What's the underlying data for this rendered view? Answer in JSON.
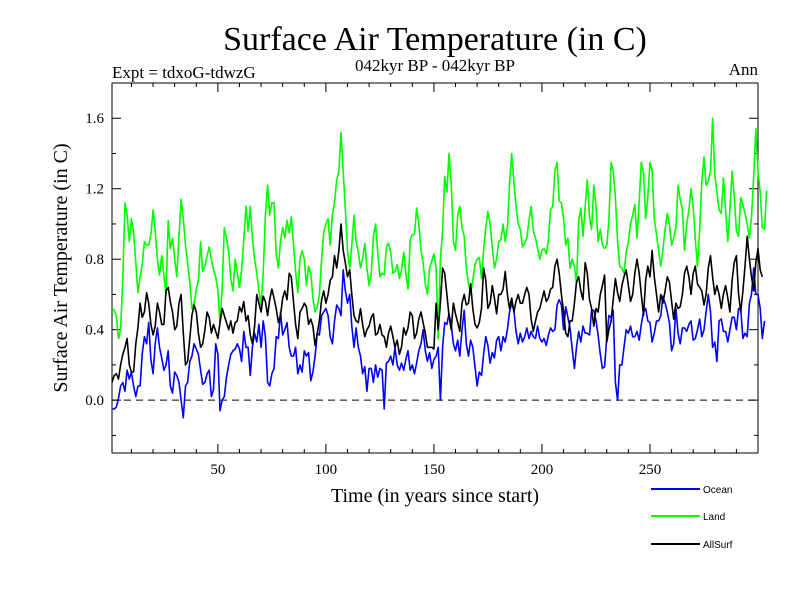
{
  "chart_data": {
    "type": "line",
    "title": "Surface Air Temperature (in C)",
    "subtitle_left": "Expt = tdxoG-tdwzG",
    "subtitle_center": "042kyr BP - 042kyr BP",
    "subtitle_right": "Ann",
    "xlabel": "Time (in years since start)",
    "ylabel": "Surface Air Temperature (in C)",
    "xlim": [
      1,
      300
    ],
    "ylim": [
      -0.3,
      1.8
    ],
    "x_ticks": [
      50,
      100,
      150,
      200,
      250
    ],
    "y_ticks": [
      0.0,
      0.4,
      0.8,
      1.2,
      1.6
    ],
    "y_tick_labels": [
      "0.0",
      "0.4",
      "0.8",
      "1.2",
      "1.6"
    ],
    "zero_line": "dashed",
    "grid": false,
    "legend_position": "bottom-right",
    "x_step": 1,
    "series": [
      {
        "name": "Ocean",
        "color": "#0000ff",
        "values": [
          -0.05,
          -0.05,
          -0.04,
          0.01,
          0.08,
          0.1,
          0.05,
          0.17,
          0.12,
          0.16,
          0.08,
          0.02,
          0.08,
          0.08,
          0.26,
          0.36,
          0.32,
          0.44,
          0.23,
          0.15,
          0.32,
          0.41,
          0.3,
          0.24,
          0.17,
          0.2,
          0.28,
          0.08,
          0.04,
          0.16,
          0.14,
          0.1,
          0.0,
          -0.1,
          0.08,
          0.1,
          0.22,
          0.25,
          0.32,
          0.29,
          0.26,
          0.17,
          0.09,
          0.1,
          0.15,
          0.17,
          0.02,
          0.06,
          0.32,
          0.26,
          -0.06,
          0.0,
          0.02,
          0.13,
          0.2,
          0.26,
          0.28,
          0.29,
          0.32,
          0.29,
          0.22,
          0.39,
          0.3,
          0.3,
          0.14,
          0.3,
          0.38,
          0.33,
          0.43,
          0.3,
          0.45,
          0.36,
          0.1,
          0.08,
          0.15,
          0.18,
          0.36,
          0.35,
          0.5,
          0.37,
          0.4,
          0.44,
          0.3,
          0.25,
          0.25,
          0.3,
          0.15,
          0.2,
          0.16,
          0.28,
          0.25,
          0.27,
          0.11,
          0.16,
          0.25,
          0.38,
          0.37,
          0.48,
          0.5,
          0.52,
          0.48,
          0.36,
          0.32,
          0.45,
          0.54,
          0.52,
          0.48,
          0.74,
          0.62,
          0.55,
          0.6,
          0.42,
          0.3,
          0.41,
          0.3,
          0.25,
          0.15,
          0.19,
          0.05,
          0.18,
          0.18,
          0.1,
          0.2,
          0.13,
          0.18,
          0.17,
          -0.05,
          0.21,
          0.22,
          0.25,
          0.2,
          0.3,
          0.2,
          0.17,
          0.21,
          0.17,
          0.23,
          0.28,
          0.17,
          0.2,
          0.15,
          0.21,
          0.28,
          0.32,
          0.4,
          0.28,
          0.22,
          0.27,
          0.18,
          0.23,
          0.25,
          0.3,
          0.0,
          0.3,
          0.44,
          0.43,
          0.49,
          0.43,
          0.32,
          0.28,
          0.34,
          0.25,
          0.4,
          0.51,
          0.32,
          0.25,
          0.34,
          0.3,
          0.19,
          0.08,
          0.16,
          0.14,
          0.26,
          0.36,
          0.31,
          0.21,
          0.27,
          0.24,
          0.34,
          0.36,
          0.28,
          0.36,
          0.33,
          0.4,
          0.5,
          0.55,
          0.51,
          0.39,
          0.32,
          0.38,
          0.33,
          0.36,
          0.41,
          0.35,
          0.39,
          0.36,
          0.35,
          0.42,
          0.35,
          0.33,
          0.35,
          0.31,
          0.37,
          0.41,
          0.39,
          0.4,
          0.54,
          0.57,
          0.54,
          0.4,
          0.53,
          0.47,
          0.41,
          0.29,
          0.18,
          0.3,
          0.39,
          0.33,
          0.42,
          0.38,
          0.38,
          0.37,
          0.51,
          0.51,
          0.45,
          0.37,
          0.26,
          0.18,
          0.19,
          0.36,
          0.48,
          0.47,
          0.51,
          0.1,
          0.0,
          0.2,
          0.2,
          0.3,
          0.4,
          0.38,
          0.42,
          0.36,
          0.36,
          0.39,
          0.34,
          0.43,
          0.5,
          0.52,
          0.45,
          0.44,
          0.33,
          0.38,
          0.45,
          0.45,
          0.48,
          0.59,
          0.55,
          0.5,
          0.44,
          0.28,
          0.32,
          0.52,
          0.38,
          0.32,
          0.41,
          0.41,
          0.39,
          0.43,
          0.45,
          0.34,
          0.35,
          0.4,
          0.46,
          0.36,
          0.4,
          0.5,
          0.6,
          0.5,
          0.3,
          0.33,
          0.22,
          0.45,
          0.46,
          0.39,
          0.39,
          0.33,
          0.4,
          0.47,
          0.47,
          0.4,
          0.52,
          0.52,
          0.35,
          0.38,
          0.36,
          0.55,
          0.6,
          0.75,
          0.6,
          0.6,
          0.52,
          0.35,
          0.45
        ]
      },
      {
        "name": "Land",
        "color": "#00ff00",
        "values": [
          0.52,
          0.51,
          0.48,
          0.35,
          0.4,
          0.69,
          1.12,
          1.05,
          0.9,
          1.03,
          0.95,
          0.78,
          0.61,
          0.7,
          0.77,
          0.9,
          0.88,
          0.88,
          0.94,
          1.08,
          0.96,
          0.8,
          0.71,
          0.82,
          0.71,
          0.6,
          1.02,
          0.86,
          0.92,
          0.8,
          0.7,
          0.93,
          1.14,
          1.03,
          0.88,
          0.78,
          0.67,
          0.52,
          0.55,
          0.63,
          0.68,
          0.9,
          0.73,
          0.76,
          0.82,
          0.87,
          0.8,
          0.74,
          0.7,
          0.62,
          0.44,
          0.64,
          0.98,
          0.92,
          0.84,
          0.69,
          0.62,
          0.8,
          0.72,
          0.64,
          0.74,
          0.91,
          1.1,
          0.96,
          1.1,
          0.92,
          0.8,
          0.72,
          0.62,
          0.54,
          0.72,
          1.05,
          1.22,
          1.05,
          1.12,
          1.12,
          0.83,
          0.75,
          0.9,
          0.98,
          0.92,
          1.02,
          0.95,
          1.04,
          0.88,
          0.73,
          0.61,
          0.8,
          0.85,
          0.8,
          0.65,
          0.76,
          0.72,
          0.58,
          0.5,
          0.53,
          0.6,
          0.8,
          0.95,
          1.0,
          1.03,
          0.88,
          1.05,
          1.12,
          1.25,
          1.3,
          1.52,
          1.3,
          1.09,
          0.85,
          0.75,
          0.88,
          1.05,
          0.9,
          0.84,
          0.75,
          0.8,
          0.89,
          0.75,
          0.65,
          0.72,
          0.93,
          1.0,
          0.84,
          0.7,
          0.72,
          0.71,
          0.87,
          0.89,
          0.84,
          0.72,
          0.73,
          0.77,
          0.69,
          0.74,
          0.84,
          0.72,
          0.63,
          0.91,
          0.94,
          0.94,
          1.09,
          1.0,
          0.85,
          0.78,
          0.66,
          0.6,
          0.75,
          0.79,
          0.83,
          0.75,
          0.35,
          0.8,
          0.96,
          1.27,
          1.18,
          1.4,
          1.24,
          0.9,
          0.85,
          1.05,
          1.1,
          0.98,
          0.93,
          0.75,
          0.66,
          0.6,
          0.68,
          0.77,
          0.8,
          0.81,
          0.69,
          0.85,
          0.98,
          1.07,
          1.0,
          0.87,
          0.75,
          0.8,
          0.9,
          0.91,
          1.0,
          0.9,
          0.98,
          1.22,
          1.4,
          1.24,
          1.1,
          1.0,
          0.97,
          0.87,
          0.89,
          0.92,
          1.02,
          1.1,
          0.96,
          0.92,
          0.86,
          0.8,
          0.85,
          0.86,
          0.83,
          0.91,
          1.08,
          1.1,
          1.3,
          1.35,
          1.13,
          1.12,
          1.03,
          0.88,
          0.92,
          0.75,
          0.8,
          0.76,
          0.66,
          1.02,
          1.09,
          0.93,
          1.1,
          1.25,
          1.04,
          0.97,
          1.22,
          1.1,
          0.9,
          0.97,
          0.88,
          0.86,
          0.88,
          1.02,
          1.35,
          1.3,
          1.15,
          0.9,
          0.76,
          0.75,
          0.72,
          0.84,
          0.9,
          1.0,
          1.05,
          1.11,
          0.92,
          1.13,
          1.35,
          1.29,
          1.03,
          1.15,
          1.35,
          1.3,
          1.03,
          0.94,
          0.85,
          0.76,
          0.85,
          0.97,
          1.06,
          1.0,
          0.88,
          0.92,
          0.98,
          1.22,
          1.14,
          1.08,
          0.85,
          1.0,
          1.08,
          1.2,
          1.1,
          0.91,
          0.76,
          0.97,
          1.24,
          1.38,
          1.22,
          1.24,
          1.3,
          1.6,
          1.28,
          1.18,
          1.08,
          1.06,
          1.26,
          1.08,
          0.9,
          1.08,
          1.3,
          1.16,
          0.96,
          0.93,
          1.15,
          1.11,
          1.06,
          1.0,
          0.92,
          1.04,
          1.27,
          1.54,
          1.3,
          1.18,
          0.98,
          0.97,
          1.19
        ]
      },
      {
        "name": "AllSurf",
        "color": "#000000",
        "values": [
          0.1,
          0.14,
          0.15,
          0.12,
          0.2,
          0.26,
          0.3,
          0.35,
          0.2,
          0.16,
          0.16,
          0.32,
          0.41,
          0.55,
          0.47,
          0.5,
          0.61,
          0.55,
          0.43,
          0.37,
          0.42,
          0.55,
          0.5,
          0.43,
          0.43,
          0.62,
          0.64,
          0.56,
          0.5,
          0.4,
          0.42,
          0.55,
          0.6,
          0.38,
          0.2,
          0.22,
          0.35,
          0.48,
          0.54,
          0.5,
          0.38,
          0.3,
          0.32,
          0.4,
          0.5,
          0.47,
          0.38,
          0.43,
          0.39,
          0.35,
          0.44,
          0.52,
          0.48,
          0.44,
          0.4,
          0.45,
          0.38,
          0.44,
          0.45,
          0.53,
          0.5,
          0.56,
          0.45,
          0.48,
          0.37,
          0.32,
          0.42,
          0.6,
          0.55,
          0.5,
          0.59,
          0.56,
          0.48,
          0.57,
          0.63,
          0.58,
          0.52,
          0.44,
          0.48,
          0.58,
          0.62,
          0.57,
          0.72,
          0.7,
          0.56,
          0.43,
          0.35,
          0.5,
          0.52,
          0.55,
          0.53,
          0.43,
          0.46,
          0.42,
          0.31,
          0.38,
          0.45,
          0.57,
          0.62,
          0.55,
          0.6,
          0.68,
          0.7,
          0.82,
          0.75,
          0.85,
          1.0,
          0.85,
          0.78,
          0.7,
          0.74,
          0.6,
          0.48,
          0.45,
          0.44,
          0.52,
          0.43,
          0.36,
          0.4,
          0.42,
          0.47,
          0.49,
          0.37,
          0.38,
          0.43,
          0.37,
          0.36,
          0.3,
          0.38,
          0.42,
          0.36,
          0.3,
          0.34,
          0.26,
          0.3,
          0.41,
          0.37,
          0.41,
          0.5,
          0.48,
          0.35,
          0.38,
          0.46,
          0.5,
          0.44,
          0.38,
          0.3,
          0.3,
          0.3,
          0.29,
          0.55,
          0.4,
          0.55,
          0.75,
          0.72,
          0.6,
          0.48,
          0.4,
          0.55,
          0.49,
          0.44,
          0.39,
          0.55,
          0.6,
          0.54,
          0.55,
          0.66,
          0.52,
          0.43,
          0.41,
          0.44,
          0.52,
          0.75,
          0.68,
          0.52,
          0.55,
          0.65,
          0.58,
          0.49,
          0.6,
          0.6,
          0.63,
          0.73,
          0.6,
          0.52,
          0.58,
          0.5,
          0.56,
          0.6,
          0.55,
          0.55,
          0.6,
          0.64,
          0.6,
          0.46,
          0.39,
          0.45,
          0.5,
          0.52,
          0.57,
          0.62,
          0.56,
          0.58,
          0.63,
          0.64,
          0.76,
          0.8,
          0.72,
          0.6,
          0.5,
          0.38,
          0.36,
          0.45,
          0.45,
          0.55,
          0.67,
          0.7,
          0.62,
          0.57,
          0.78,
          0.72,
          0.57,
          0.52,
          0.42,
          0.52,
          0.5,
          0.6,
          0.65,
          0.71,
          0.33,
          0.4,
          0.45,
          0.57,
          0.69,
          0.61,
          0.56,
          0.65,
          0.7,
          0.74,
          0.65,
          0.56,
          0.6,
          0.72,
          0.8,
          0.72,
          0.6,
          0.48,
          0.68,
          0.76,
          0.7,
          0.85,
          0.7,
          0.6,
          0.5,
          0.6,
          0.55,
          0.62,
          0.7,
          0.67,
          0.56,
          0.46,
          0.55,
          0.52,
          0.53,
          0.6,
          0.72,
          0.76,
          0.7,
          0.6,
          0.72,
          0.76,
          0.66,
          0.64,
          0.62,
          0.54,
          0.6,
          0.75,
          0.82,
          0.7,
          0.6,
          0.65,
          0.6,
          0.52,
          0.6,
          0.65,
          0.58,
          0.5,
          0.68,
          0.78,
          0.82,
          0.6,
          0.5,
          0.62,
          0.76,
          0.93,
          0.8,
          0.7,
          0.62,
          0.78,
          0.86,
          0.74,
          0.7
        ]
      }
    ]
  }
}
